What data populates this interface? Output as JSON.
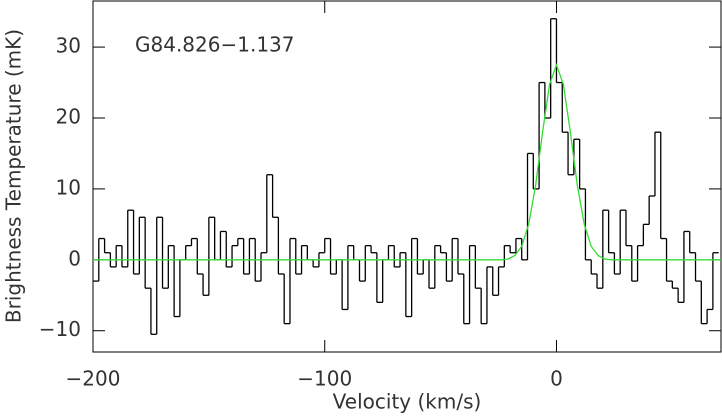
{
  "chart_data": {
    "type": "line",
    "title": null,
    "annotation": "G84.826−1.137",
    "xlabel": "Velocity (km/s)",
    "ylabel": "Brightness Temperature (mK)",
    "xlim": [
      -200,
      71
    ],
    "ylim": [
      -13,
      36.5
    ],
    "xticks": [
      {
        "value": -200,
        "label": "−200"
      },
      {
        "value": -100,
        "label": "−100"
      },
      0
    ],
    "yticks": [
      {
        "value": -10,
        "label": "−10"
      },
      0,
      10,
      20,
      30
    ],
    "series": [
      {
        "name": "spectrum",
        "style": "step",
        "color": "#000000",
        "x": [
          -198.75,
          -196.25,
          -193.75,
          -191.25,
          -188.75,
          -186.25,
          -183.75,
          -181.25,
          -178.75,
          -176.25,
          -173.75,
          -171.25,
          -168.75,
          -166.25,
          -163.75,
          -161.25,
          -158.75,
          -156.25,
          -153.75,
          -151.25,
          -148.75,
          -146.25,
          -143.75,
          -141.25,
          -138.75,
          -136.25,
          -133.75,
          -131.25,
          -128.75,
          -126.25,
          -123.75,
          -121.25,
          -118.75,
          -116.25,
          -113.75,
          -111.25,
          -108.75,
          -106.25,
          -103.75,
          -101.25,
          -98.75,
          -96.25,
          -93.75,
          -91.25,
          -88.75,
          -86.25,
          -83.75,
          -81.25,
          -78.75,
          -76.25,
          -73.75,
          -71.25,
          -68.75,
          -66.25,
          -63.75,
          -61.25,
          -58.75,
          -56.25,
          -53.75,
          -51.25,
          -48.75,
          -46.25,
          -43.75,
          -41.25,
          -38.75,
          -36.25,
          -33.75,
          -31.25,
          -28.75,
          -26.25,
          -23.75,
          -21.25,
          -18.75,
          -16.25,
          -13.75,
          -11.25,
          -8.75,
          -6.25,
          -3.75,
          -1.25,
          1.25,
          3.75,
          6.25,
          8.75,
          11.25,
          13.75,
          16.25,
          18.75,
          21.25,
          23.75,
          26.25,
          28.75,
          31.25,
          33.75,
          36.25,
          38.75,
          41.25,
          43.75,
          46.25,
          48.75,
          51.25,
          53.75,
          56.25,
          58.75,
          61.25,
          63.75,
          66.25,
          68.75
        ],
        "values": [
          -3,
          3,
          1,
          -1,
          2,
          -1,
          7,
          -2,
          6,
          -4,
          -10.5,
          6,
          -4,
          2,
          -8,
          0,
          2,
          3,
          -2,
          -5,
          6,
          0,
          4,
          -1,
          2,
          3,
          -2,
          3,
          -3,
          1,
          12,
          6,
          -2,
          -9,
          3,
          -2,
          2,
          0,
          -1,
          1,
          3,
          -2,
          0,
          -7,
          2,
          0,
          -3,
          2,
          1,
          -6,
          0,
          2,
          -1,
          1,
          -8,
          3,
          -2,
          0,
          -4,
          2,
          1,
          -3,
          3,
          -2,
          -9,
          2,
          -4,
          -9,
          -1,
          -5,
          -1,
          2,
          1,
          3,
          0,
          15,
          10,
          25,
          20,
          34,
          25,
          18,
          12,
          17,
          10,
          0,
          -2,
          -4,
          7,
          1,
          -2,
          7,
          2,
          -3,
          2,
          5,
          9,
          18,
          3,
          -3,
          -4,
          -6,
          4,
          1,
          -3,
          -9,
          -7,
          1
        ]
      },
      {
        "name": "fit",
        "style": "smooth",
        "color": "#33dd33",
        "x": [
          -200,
          -24,
          -21,
          -18,
          -15,
          -12,
          -9,
          -6,
          -3,
          0,
          3,
          6,
          9,
          12,
          15,
          18,
          21,
          24,
          71
        ],
        "values": [
          0,
          0,
          0.1,
          0.6,
          1.9,
          5.0,
          10.5,
          18.0,
          24.7,
          27.5,
          24.7,
          18.0,
          10.5,
          5.0,
          1.9,
          0.6,
          0.1,
          0,
          0
        ]
      }
    ]
  }
}
